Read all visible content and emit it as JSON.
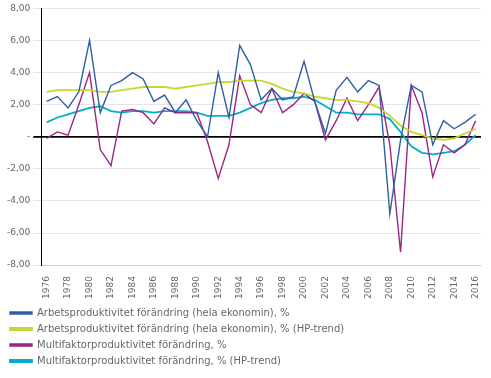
{
  "chart_data": {
    "type": "line",
    "x": [
      1976,
      1977,
      1978,
      1979,
      1980,
      1981,
      1982,
      1983,
      1984,
      1985,
      1986,
      1987,
      1988,
      1989,
      1990,
      1991,
      1992,
      1993,
      1994,
      1995,
      1996,
      1997,
      1998,
      1999,
      2000,
      2001,
      2002,
      2003,
      2004,
      2005,
      2006,
      2007,
      2008,
      2009,
      2010,
      2011,
      2012,
      2013,
      2014,
      2015,
      2016
    ],
    "series": [
      {
        "name": "Arbetsproduktivitet förändring (hela ekonomin), %",
        "color": "#2e5fa3",
        "values": [
          2.2,
          2.5,
          1.8,
          2.8,
          6.0,
          1.5,
          3.2,
          3.5,
          4.0,
          3.6,
          2.2,
          2.6,
          1.5,
          2.3,
          1.0,
          0.0,
          4.0,
          1.2,
          5.7,
          4.5,
          2.3,
          3.0,
          2.3,
          2.5,
          4.7,
          2.2,
          0.2,
          2.9,
          3.7,
          2.8,
          3.5,
          3.2,
          -4.8,
          -0.2,
          3.2,
          2.8,
          -0.5,
          1.0,
          0.5,
          0.9,
          1.4
        ]
      },
      {
        "name": "Arbetsproduktivitet förändring (hela ekonomin), % (HP-trend)",
        "color": "#c8d633",
        "values": [
          2.8,
          2.9,
          2.9,
          2.9,
          2.9,
          2.8,
          2.8,
          2.9,
          3.0,
          3.1,
          3.1,
          3.1,
          3.0,
          3.1,
          3.2,
          3.3,
          3.4,
          3.4,
          3.5,
          3.5,
          3.5,
          3.3,
          3.0,
          2.8,
          2.7,
          2.5,
          2.4,
          2.3,
          2.3,
          2.2,
          2.1,
          1.8,
          1.3,
          0.7,
          0.3,
          0.1,
          -0.1,
          -0.2,
          -0.1,
          0.2,
          0.5
        ]
      },
      {
        "name": "Multifaktorproduktivitet förändring, %",
        "color": "#9b2589",
        "values": [
          -0.1,
          0.3,
          0.1,
          2.0,
          4.0,
          -0.8,
          -1.8,
          1.6,
          1.7,
          1.5,
          0.8,
          1.8,
          1.5,
          1.5,
          1.5,
          -0.3,
          -2.6,
          -0.5,
          3.8,
          2.0,
          1.5,
          3.0,
          1.5,
          2.0,
          2.7,
          2.2,
          -0.2,
          1.0,
          2.4,
          1.0,
          2.0,
          3.1,
          -0.5,
          -7.2,
          3.2,
          1.5,
          -2.5,
          -0.5,
          -1.0,
          -0.5,
          1.0
        ]
      },
      {
        "name": "Multifaktorproduktivitet förändring, % (HP-trend)",
        "color": "#00b0c8",
        "values": [
          0.9,
          1.2,
          1.4,
          1.6,
          1.8,
          1.9,
          1.6,
          1.5,
          1.6,
          1.6,
          1.5,
          1.6,
          1.6,
          1.6,
          1.5,
          1.3,
          1.3,
          1.3,
          1.5,
          1.8,
          2.1,
          2.3,
          2.4,
          2.4,
          2.5,
          2.3,
          1.9,
          1.5,
          1.5,
          1.4,
          1.4,
          1.4,
          1.1,
          0.3,
          -0.6,
          -1.0,
          -1.1,
          -1.0,
          -0.9,
          -0.5,
          0.1
        ]
      }
    ],
    "xlim": [
      1975.5,
      2016.5
    ],
    "xticks": [
      1976,
      1978,
      1980,
      1982,
      1984,
      1986,
      1988,
      1990,
      1992,
      1994,
      1996,
      1998,
      2000,
      2002,
      2004,
      2006,
      2008,
      2010,
      2012,
      2014,
      2016
    ],
    "ylim": [
      -8.0,
      8.0
    ],
    "yticks": [
      {
        "value": -8.0,
        "label": "-8,00"
      },
      {
        "value": -6.0,
        "label": "-6,00"
      },
      {
        "value": -4.0,
        "label": "-4,00"
      },
      {
        "value": -2.0,
        "label": "-2,00"
      },
      {
        "value": 0.0,
        "label": "-"
      },
      {
        "value": 2.0,
        "label": "2,00"
      },
      {
        "value": 4.0,
        "label": "4,00"
      },
      {
        "value": 6.0,
        "label": "6,00"
      },
      {
        "value": 8.0,
        "label": "8,00"
      }
    ],
    "grid": "y",
    "legend": "bottom"
  }
}
